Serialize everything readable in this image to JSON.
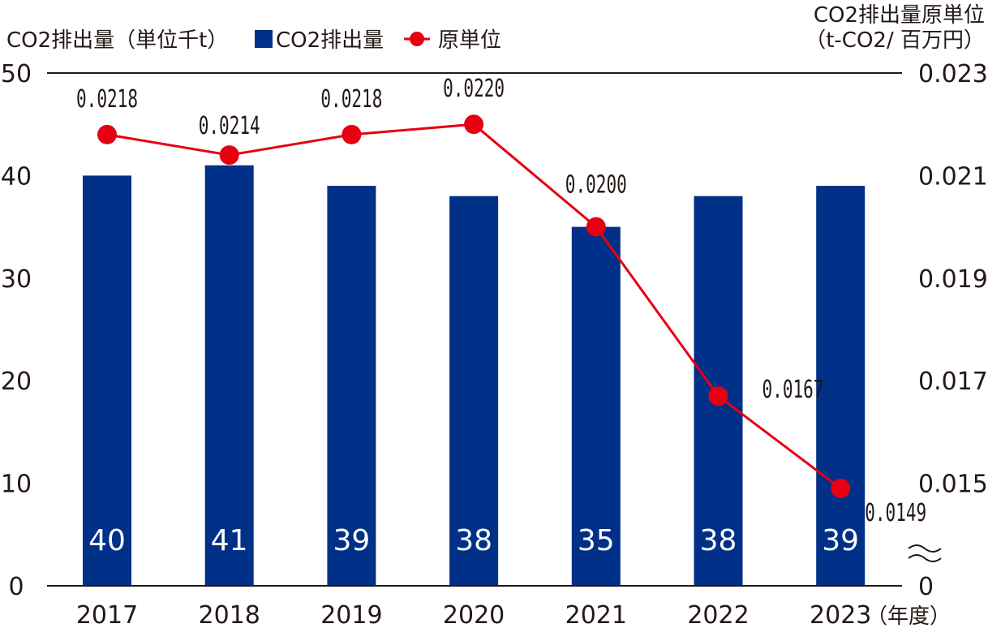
{
  "colors": {
    "bar": "#003087",
    "line": "#e60012",
    "axis": "#231815"
  },
  "chart_data": {
    "type": "bar",
    "categories": [
      "2017",
      "2018",
      "2019",
      "2020",
      "2021",
      "2022",
      "2023"
    ],
    "xlabel_suffix": "（年度）",
    "ylabel_left": "CO2排出量（単位千t）",
    "ylabel_right_line1": "CO2排出量原単位",
    "ylabel_right_line2": "（t-CO2/ 百万円）",
    "ylim_left": [
      0,
      50
    ],
    "yticks_left": [
      "0",
      "10",
      "20",
      "30",
      "40",
      "50"
    ],
    "ylim_right": [
      0.013,
      0.023
    ],
    "yticks_right": [
      "0",
      "0.015",
      "0.017",
      "0.019",
      "0.021",
      "0.023"
    ],
    "right_axis_break": true,
    "legend": {
      "bar": "CO2排出量",
      "line": "原単位"
    },
    "series": [
      {
        "name": "CO2排出量",
        "kind": "bar",
        "values": [
          40,
          41,
          39,
          38,
          35,
          38,
          39
        ],
        "labels": [
          "40",
          "41",
          "39",
          "38",
          "35",
          "38",
          "39"
        ]
      },
      {
        "name": "原単位",
        "kind": "line",
        "values": [
          0.0218,
          0.0214,
          0.0218,
          0.022,
          0.02,
          0.0167,
          0.0149
        ],
        "labels": [
          "0.0218",
          "0.0214",
          "0.0218",
          "0.0220",
          "0.0200",
          "0.0167",
          "0.0149"
        ]
      }
    ]
  }
}
